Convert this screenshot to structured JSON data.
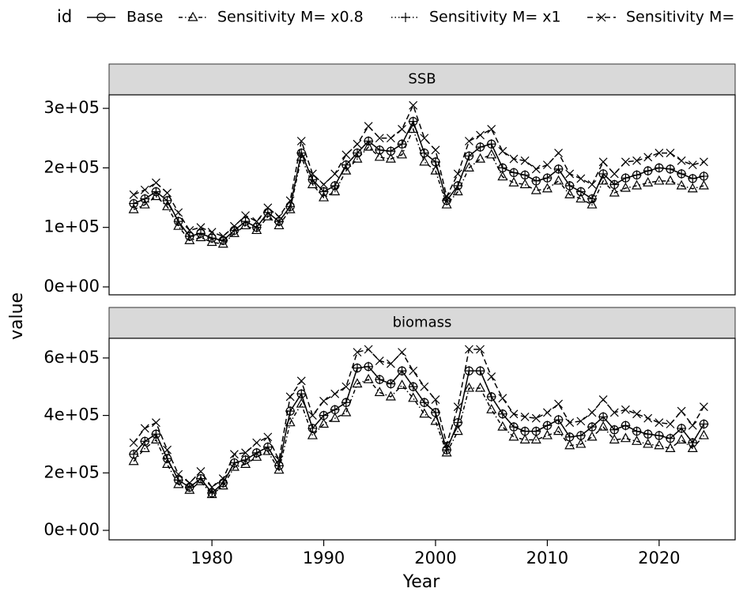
{
  "chart_data": {
    "type": "line",
    "legend_title": "id",
    "xlabel": "Year",
    "ylabel": "value",
    "x": [
      1973,
      1974,
      1975,
      1976,
      1977,
      1978,
      1979,
      1980,
      1981,
      1982,
      1983,
      1984,
      1985,
      1986,
      1987,
      1988,
      1989,
      1990,
      1991,
      1992,
      1993,
      1994,
      1995,
      1996,
      1997,
      1998,
      1999,
      2000,
      2001,
      2002,
      2003,
      2004,
      2005,
      2006,
      2007,
      2008,
      2009,
      2010,
      2011,
      2012,
      2013,
      2014,
      2015,
      2016,
      2017,
      2018,
      2019,
      2020,
      2021,
      2022,
      2023,
      2024
    ],
    "xlim": [
      1970.8,
      2026.8
    ],
    "xticks": [
      1980,
      1990,
      2000,
      2010,
      2020
    ],
    "series": [
      {
        "name": "Base",
        "color": "#000000",
        "marker": "circle",
        "dash": "solid"
      },
      {
        "name": "Sensitivity M= x0.8",
        "color": "#000000",
        "marker": "triangle",
        "dash": "dotdash"
      },
      {
        "name": "Sensitivity M= x1",
        "color": "#000000",
        "marker": "plus",
        "dash": "dotted"
      },
      {
        "name": "Sensitivity M=",
        "color": "#000000",
        "marker": "cross",
        "dash": "dashed"
      }
    ],
    "facets": [
      {
        "title": "SSB",
        "ylim": [
          -13300,
          322700
        ],
        "yticks": [
          {
            "value": 0,
            "label": "0e+00"
          },
          {
            "value": 100000,
            "label": "1e+05"
          },
          {
            "value": 200000,
            "label": "2e+05"
          },
          {
            "value": 300000,
            "label": "3e+05"
          }
        ],
        "values": [
          [
            140000,
            148000,
            160000,
            145000,
            110000,
            85000,
            90000,
            82000,
            78000,
            95000,
            110000,
            100000,
            125000,
            110000,
            135000,
            225000,
            180000,
            160000,
            170000,
            205000,
            225000,
            245000,
            230000,
            228000,
            240000,
            278000,
            225000,
            210000,
            145000,
            170000,
            220000,
            235000,
            240000,
            200000,
            192000,
            188000,
            178000,
            183000,
            198000,
            170000,
            160000,
            148000,
            190000,
            172000,
            183000,
            188000,
            195000,
            200000,
            198000,
            190000,
            182000,
            186000
          ],
          [
            130000,
            138000,
            152000,
            135000,
            102000,
            78000,
            83000,
            75000,
            72000,
            90000,
            103000,
            95000,
            118000,
            103000,
            130000,
            218000,
            172000,
            150000,
            160000,
            195000,
            215000,
            235000,
            218000,
            215000,
            222000,
            265000,
            210000,
            195000,
            138000,
            160000,
            200000,
            215000,
            222000,
            185000,
            175000,
            172000,
            162000,
            165000,
            178000,
            155000,
            148000,
            138000,
            178000,
            158000,
            166000,
            170000,
            175000,
            178000,
            178000,
            170000,
            165000,
            170000
          ],
          [
            140000,
            148000,
            160000,
            145000,
            110000,
            85000,
            90000,
            82000,
            78000,
            95000,
            110000,
            100000,
            125000,
            110000,
            135000,
            225000,
            180000,
            160000,
            170000,
            205000,
            225000,
            245000,
            230000,
            228000,
            240000,
            278000,
            225000,
            210000,
            145000,
            170000,
            220000,
            235000,
            240000,
            200000,
            192000,
            188000,
            178000,
            183000,
            198000,
            170000,
            160000,
            148000,
            190000,
            172000,
            183000,
            188000,
            195000,
            200000,
            198000,
            190000,
            182000,
            186000
          ],
          [
            155000,
            163000,
            175000,
            158000,
            125000,
            95000,
            100000,
            92000,
            85000,
            102000,
            120000,
            110000,
            133000,
            118000,
            145000,
            245000,
            190000,
            172000,
            190000,
            222000,
            240000,
            270000,
            250000,
            250000,
            265000,
            305000,
            250000,
            230000,
            152000,
            190000,
            245000,
            255000,
            265000,
            228000,
            215000,
            212000,
            198000,
            205000,
            225000,
            190000,
            182000,
            172000,
            210000,
            190000,
            210000,
            212000,
            218000,
            225000,
            225000,
            212000,
            205000,
            210000
          ]
        ]
      },
      {
        "title": "biomass",
        "ylim": [
          -33000,
          668500
        ],
        "yticks": [
          {
            "value": 0,
            "label": "0e+00"
          },
          {
            "value": 200000,
            "label": "2e+05"
          },
          {
            "value": 400000,
            "label": "4e+05"
          },
          {
            "value": 600000,
            "label": "6e+05"
          }
        ],
        "values": [
          [
            265000,
            310000,
            335000,
            250000,
            175000,
            150000,
            180000,
            130000,
            165000,
            235000,
            245000,
            270000,
            290000,
            225000,
            415000,
            475000,
            355000,
            400000,
            420000,
            445000,
            565000,
            570000,
            525000,
            510000,
            555000,
            500000,
            445000,
            410000,
            280000,
            375000,
            555000,
            555000,
            465000,
            405000,
            360000,
            345000,
            345000,
            365000,
            385000,
            325000,
            330000,
            360000,
            395000,
            350000,
            365000,
            345000,
            335000,
            330000,
            320000,
            355000,
            305000,
            370000
          ],
          [
            240000,
            285000,
            315000,
            230000,
            160000,
            140000,
            170000,
            125000,
            155000,
            220000,
            230000,
            255000,
            275000,
            210000,
            375000,
            440000,
            330000,
            370000,
            390000,
            410000,
            510000,
            525000,
            480000,
            465000,
            505000,
            460000,
            405000,
            380000,
            270000,
            345000,
            495000,
            495000,
            420000,
            360000,
            325000,
            315000,
            315000,
            330000,
            345000,
            295000,
            300000,
            325000,
            360000,
            315000,
            320000,
            310000,
            300000,
            295000,
            285000,
            315000,
            285000,
            330000
          ],
          [
            265000,
            310000,
            335000,
            250000,
            175000,
            150000,
            180000,
            130000,
            165000,
            235000,
            245000,
            270000,
            290000,
            225000,
            415000,
            475000,
            355000,
            400000,
            420000,
            445000,
            565000,
            570000,
            525000,
            510000,
            555000,
            500000,
            445000,
            410000,
            280000,
            375000,
            555000,
            555000,
            465000,
            405000,
            360000,
            345000,
            345000,
            365000,
            385000,
            325000,
            330000,
            360000,
            395000,
            350000,
            365000,
            345000,
            335000,
            330000,
            320000,
            355000,
            305000,
            370000
          ],
          [
            305000,
            355000,
            375000,
            280000,
            195000,
            165000,
            205000,
            150000,
            180000,
            265000,
            270000,
            305000,
            325000,
            245000,
            465000,
            520000,
            400000,
            450000,
            475000,
            500000,
            620000,
            630000,
            590000,
            580000,
            620000,
            555000,
            500000,
            455000,
            300000,
            430000,
            630000,
            630000,
            535000,
            460000,
            405000,
            395000,
            390000,
            410000,
            440000,
            375000,
            380000,
            410000,
            455000,
            410000,
            420000,
            405000,
            390000,
            375000,
            370000,
            415000,
            365000,
            430000
          ]
        ]
      }
    ]
  }
}
